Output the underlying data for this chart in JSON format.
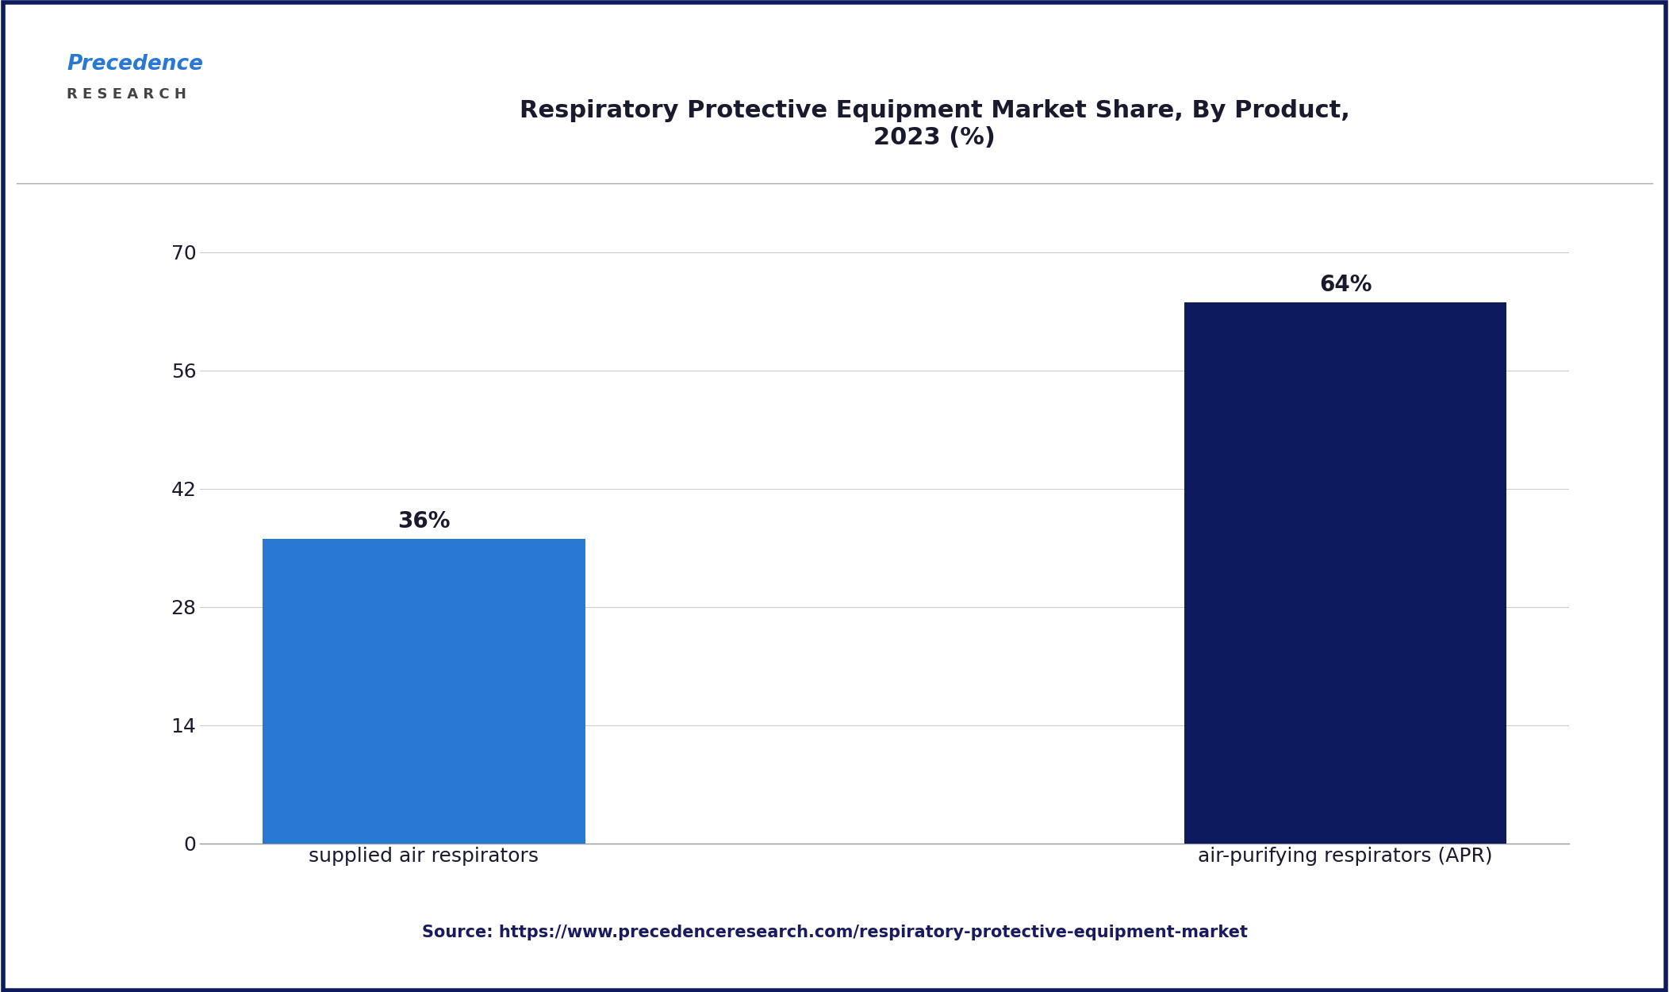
{
  "title": "Respiratory Protective Equipment Market Share, By Product,\n2023 (%)",
  "categories": [
    "supplied air respirators",
    "air-purifying respirators (APR)"
  ],
  "values": [
    36,
    64
  ],
  "bar_colors": [
    "#2979D4",
    "#0D1B5E"
  ],
  "bar_labels": [
    "36%",
    "64%"
  ],
  "yticks": [
    0,
    14,
    28,
    42,
    56,
    70
  ],
  "ylim": [
    0,
    74
  ],
  "background_color": "#FFFFFF",
  "plot_bg_color": "#FFFFFF",
  "grid_color": "#CCCCCC",
  "title_color": "#1a1a2e",
  "tick_label_color": "#1a1a2e",
  "source_text": "Source: https://www.precedenceresearch.com/respiratory-protective-equipment-market",
  "source_color": "#1a1a5e",
  "border_color": "#0D1B5E",
  "title_fontsize": 22,
  "tick_fontsize": 18,
  "label_fontsize": 18,
  "bar_label_fontsize": 20,
  "source_fontsize": 15,
  "logo_text": "Precedence",
  "logo_sub_text": "R E S E A R C H",
  "logo_color": "#2979D4",
  "logo_sub_color": "#444444"
}
